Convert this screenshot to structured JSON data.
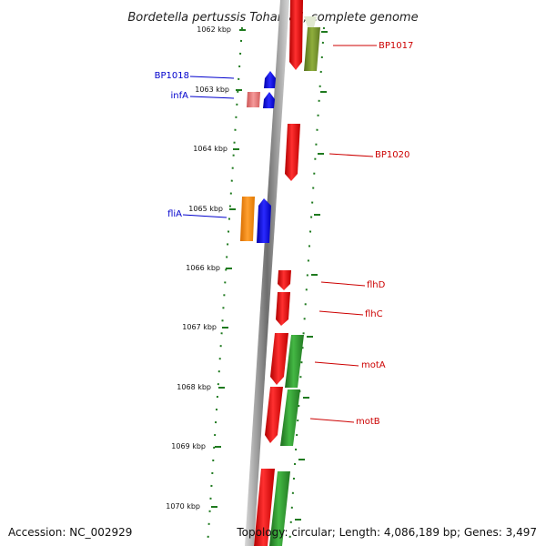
{
  "title": "Bordetella pertussis Tohama I, complete genome",
  "footer": {
    "accession": "Accession: NC_002929",
    "topology": "Topology: circular; Length: 4,086,189 bp; Genes: 3,497"
  },
  "colors": {
    "backbone": "#7a7a7a",
    "tick": "#1f7a1f",
    "cds": "#e00000",
    "cds_alt": "#2e9e2e",
    "olive": "#6f8a2a",
    "blue_gene": "#0000e6",
    "orange_gene": "#ff8c00",
    "pink_gene": "#e57373",
    "label_red": "#cc0000",
    "label_blue": "#0000cc"
  },
  "kbp_labels": [
    "1062 kbp",
    "1063 kbp",
    "1064 kbp",
    "1065 kbp",
    "1066 kbp",
    "1067 kbp",
    "1068 kbp",
    "1069 kbp",
    "1070 kbp"
  ],
  "genes": [
    {
      "label": "BP1017",
      "side": "right",
      "color": "label_red"
    },
    {
      "label": "BP1018",
      "side": "left",
      "color": "label_blue"
    },
    {
      "label": "infA",
      "side": "left",
      "color": "label_blue"
    },
    {
      "label": "BP1020",
      "side": "right",
      "color": "label_red"
    },
    {
      "label": "fliA",
      "side": "left",
      "color": "label_blue"
    },
    {
      "label": "flhD",
      "side": "right",
      "color": "label_red"
    },
    {
      "label": "flhC",
      "side": "right",
      "color": "label_red"
    },
    {
      "label": "motA",
      "side": "right",
      "color": "label_red"
    },
    {
      "label": "motB",
      "side": "right",
      "color": "label_red"
    }
  ]
}
